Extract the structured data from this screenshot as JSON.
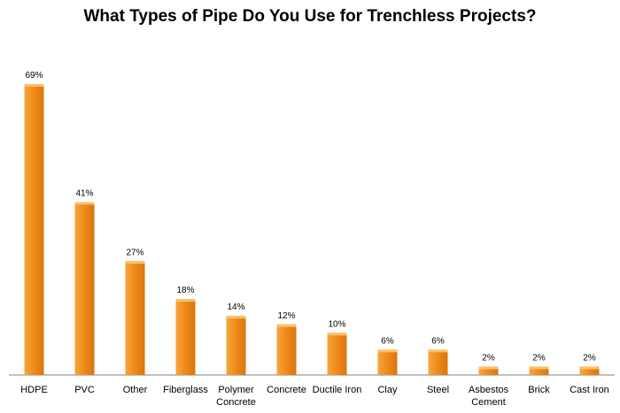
{
  "chart_data": {
    "type": "bar",
    "title": "What Types of Pipe Do You Use for Trenchless Projects?",
    "categories": [
      [
        "HDPE"
      ],
      [
        "PVC"
      ],
      [
        "Other"
      ],
      [
        "Fiberglass"
      ],
      [
        "Polymer",
        "Concrete"
      ],
      [
        "Concrete"
      ],
      [
        "Ductile Iron"
      ],
      [
        "Clay"
      ],
      [
        "Steel"
      ],
      [
        "Asbestos",
        "Cement"
      ],
      [
        "Brick"
      ],
      [
        "Cast Iron"
      ]
    ],
    "values": [
      69,
      41,
      27,
      18,
      14,
      12,
      10,
      6,
      6,
      2,
      2,
      2
    ],
    "value_labels": [
      "69%",
      "41%",
      "27%",
      "18%",
      "14%",
      "12%",
      "10%",
      "6%",
      "6%",
      "2%",
      "2%",
      "2%"
    ],
    "ylim": [
      0,
      75
    ],
    "grid": false,
    "legend": "none",
    "colors": {
      "bar_light": "#f7a540",
      "bar_mid": "#f08c1c",
      "bar_dark": "#d9750c",
      "bar_top": "#fbc06a",
      "axis": "#808080"
    }
  }
}
